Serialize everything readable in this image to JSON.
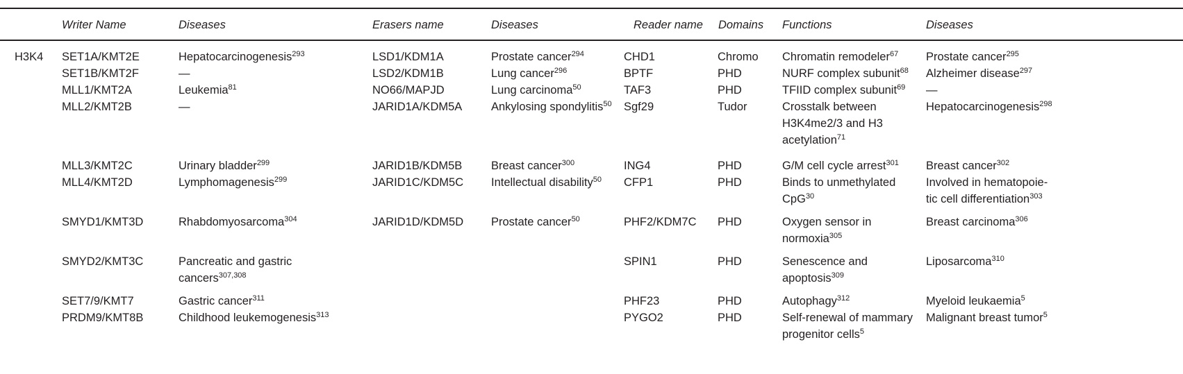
{
  "headers": {
    "writer_name": "Writer Name",
    "writer_diseases": "Diseases",
    "erasers_name": "Erasers name",
    "eraser_diseases": "Diseases",
    "reader_name": "Reader name",
    "domains": "Domains",
    "functions": "Functions",
    "reader_diseases": "Diseases"
  },
  "group_label": "H3K4",
  "rows": [
    {
      "writer": "SET1A/KMT2E",
      "wdis": {
        "text": "Hepatocarcinogenesis",
        "sup": "293"
      },
      "eraser": "LSD1/KDM1A",
      "edis": {
        "text": "Prostate cancer",
        "sup": "294"
      },
      "reader": "CHD1",
      "domain": "Chromo",
      "func": [
        {
          "text": "Chromatin remodeler",
          "sup": "67"
        }
      ],
      "rdis": [
        {
          "text": "Prostate cancer",
          "sup": "295"
        }
      ]
    },
    {
      "writer": "SET1B/KMT2F",
      "wdis": {
        "text": "—",
        "sup": ""
      },
      "eraser": "LSD2/KDM1B",
      "edis": {
        "text": "Lung cancer",
        "sup": "296"
      },
      "reader": "BPTF",
      "domain": "PHD",
      "func": [
        {
          "text": "NURF complex subunit",
          "sup": "68"
        }
      ],
      "rdis": [
        {
          "text": "Alzheimer disease",
          "sup": "297"
        }
      ]
    },
    {
      "writer": "MLL1/KMT2A",
      "wdis": {
        "text": "Leukemia",
        "sup": "81"
      },
      "eraser": "NO66/MAPJD",
      "edis": {
        "text": "Lung carcinoma",
        "sup": "50"
      },
      "reader": "TAF3",
      "domain": "PHD",
      "func": [
        {
          "text": "TFIID complex subunit",
          "sup": "69"
        }
      ],
      "rdis": [
        {
          "text": "—",
          "sup": ""
        }
      ]
    },
    {
      "writer": "MLL2/KMT2B",
      "wdis": {
        "text": "—",
        "sup": ""
      },
      "eraser": "JARID1A/KDM5A",
      "edis": {
        "text": "Ankylosing spondylitis",
        "sup": "50"
      },
      "reader": "Sgf29",
      "domain": "Tudor",
      "func": [
        {
          "text": "Crosstalk between",
          "sup": ""
        },
        {
          "text": "H3K4me2/3 and H3",
          "sup": ""
        },
        {
          "text": "acetylation",
          "sup": "71"
        }
      ],
      "rdis": [
        {
          "text": "Hepatocarcinogenesis",
          "sup": "298"
        }
      ]
    },
    {
      "writer": "MLL3/KMT2C",
      "wdis": {
        "text": "Urinary bladder",
        "sup": "299"
      },
      "eraser": "JARID1B/KDM5B",
      "edis": {
        "text": "Breast cancer",
        "sup": "300"
      },
      "reader": "ING4",
      "domain": "PHD",
      "func": [
        {
          "text": "G/M cell cycle arrest",
          "sup": "301"
        }
      ],
      "rdis": [
        {
          "text": "Breast cancer",
          "sup": "302"
        }
      ]
    },
    {
      "writer": "MLL4/KMT2D",
      "wdis": {
        "text": "Lymphomagenesis",
        "sup": "299"
      },
      "eraser": "JARID1C/KDM5C",
      "edis": {
        "text": "Intellectual disability",
        "sup": "50"
      },
      "reader": "CFP1",
      "domain": "PHD",
      "func": [
        {
          "text": "Binds to unmethylated",
          "sup": ""
        },
        {
          "text": "CpG",
          "sup": "30"
        }
      ],
      "rdis": [
        {
          "text": "Involved in hematopoie-",
          "sup": ""
        },
        {
          "text": "tic cell differentiation",
          "sup": "303"
        }
      ]
    },
    {
      "writer": "SMYD1/KMT3D",
      "wdis": {
        "text": "Rhabdomyosarcoma",
        "sup": "304"
      },
      "eraser": "JARID1D/KDM5D",
      "edis": {
        "text": "Prostate cancer",
        "sup": "50"
      },
      "reader": "PHF2/KDM7C",
      "domain": "PHD",
      "func": [
        {
          "text": "Oxygen sensor in",
          "sup": ""
        },
        {
          "text": "normoxia",
          "sup": "305"
        }
      ],
      "rdis": [
        {
          "text": "Breast carcinoma",
          "sup": "306"
        }
      ]
    },
    {
      "writer": "SMYD2/KMT3C",
      "wdis_lines": [
        {
          "text": "Pancreatic and gastric",
          "sup": ""
        },
        {
          "text": "cancers",
          "sup": "307,308"
        }
      ],
      "eraser": "",
      "edis": {
        "text": "",
        "sup": ""
      },
      "reader": "SPIN1",
      "domain": "PHD",
      "func": [
        {
          "text": "Senescence and",
          "sup": ""
        },
        {
          "text": "apoptosis",
          "sup": "309"
        }
      ],
      "rdis": [
        {
          "text": "Liposarcoma",
          "sup": "310"
        }
      ]
    },
    {
      "writer": "SET7/9/KMT7",
      "wdis": {
        "text": "Gastric cancer",
        "sup": "311"
      },
      "eraser": "",
      "edis": {
        "text": "",
        "sup": ""
      },
      "reader": "PHF23",
      "domain": "PHD",
      "func": [
        {
          "text": "Autophagy",
          "sup": "312"
        }
      ],
      "rdis": [
        {
          "text": "Myeloid leukaemia",
          "sup": "5"
        }
      ]
    },
    {
      "writer": "PRDM9/KMT8B",
      "wdis": {
        "text": "Childhood leukemogenesis",
        "sup": "313"
      },
      "eraser": "",
      "edis": {
        "text": "",
        "sup": ""
      },
      "reader": "PYGO2",
      "domain": "PHD",
      "func": [
        {
          "text": "Self-renewal of mammary",
          "sup": ""
        },
        {
          "text": "progenitor cells",
          "sup": "5"
        }
      ],
      "rdis": [
        {
          "text": "Malignant breast tumor",
          "sup": "5"
        }
      ]
    }
  ]
}
